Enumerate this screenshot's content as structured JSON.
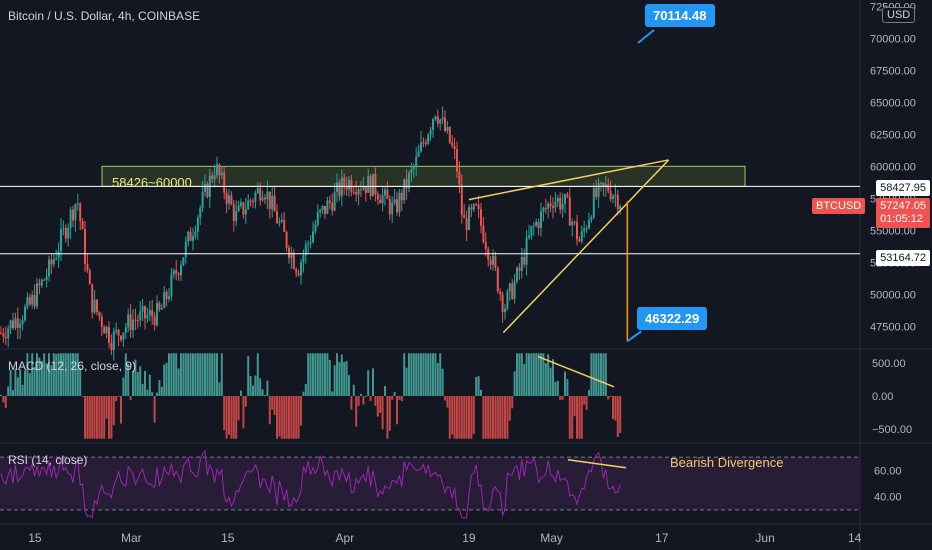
{
  "header": {
    "symbol_title": "Bitcoin / U.S. Dollar, 4h, COINBASE",
    "currency_button": "USD"
  },
  "colors": {
    "background": "#131722",
    "up": "#26a69a",
    "down": "#ef5350",
    "zone_fill": "#3a4a2a",
    "trendline": "#f0d060",
    "callout": "#2196f3",
    "rsi_line": "#9c27b0",
    "rsi_band": "#2a1e3a",
    "projection": "#ff9800"
  },
  "annotations": {
    "zone_label": "58426~60000",
    "target_high": "70114.48",
    "target_low": "46322.29",
    "bearish_label": "Bearish Divergence"
  },
  "price_tags": {
    "level_upper": "58427.95",
    "current_symbol": "BTCUSD",
    "current_price": "57247.05",
    "countdown": "01:05:12",
    "level_lower": "53164.72"
  },
  "macd": {
    "legend": "MACD (12, 26, close, 9)"
  },
  "rsi": {
    "legend": "RSI (14, close)"
  },
  "chart_data": {
    "type": "candlestick",
    "timeframe": "4h",
    "exchange": "COINBASE",
    "price_axis": {
      "ticks": [
        72500,
        70000,
        67500,
        65000,
        62500,
        60000,
        57500,
        55000,
        52500,
        50000,
        47500
      ],
      "tick_labels": [
        "72500.00",
        "70000.00",
        "67500.00",
        "65000.00",
        "62500.00",
        "60000.00",
        "57500.00",
        "55000.00",
        "52500.00",
        "50000.00",
        "47500.00"
      ],
      "range": [
        45800,
        73000
      ]
    },
    "x_axis": {
      "tick_labels": [
        "15",
        "Mar",
        "15",
        "Apr",
        "19",
        "May",
        "17",
        "Jun",
        "14"
      ],
      "tick_dates": [
        "2021-02-15",
        "2021-03-01",
        "2021-03-15",
        "2021-04-01",
        "2021-04-19",
        "2021-05-01",
        "2021-05-17",
        "2021-06-01",
        "2021-06-14"
      ]
    },
    "horizontal_levels": [
      58427.95,
      53164.72
    ],
    "zone": {
      "low": 58426,
      "high": 60000
    },
    "approx_path": [
      {
        "date": "2021-02-08",
        "close": 46500
      },
      {
        "date": "2021-02-10",
        "close": 47000
      },
      {
        "date": "2021-02-14",
        "close": 49000
      },
      {
        "date": "2021-02-17",
        "close": 52000
      },
      {
        "date": "2021-02-21",
        "close": 57500
      },
      {
        "date": "2021-02-23",
        "close": 49500
      },
      {
        "date": "2021-02-26",
        "close": 46500
      },
      {
        "date": "2021-03-01",
        "close": 48000
      },
      {
        "date": "2021-03-05",
        "close": 48500
      },
      {
        "date": "2021-03-09",
        "close": 54000
      },
      {
        "date": "2021-03-13",
        "close": 60000
      },
      {
        "date": "2021-03-16",
        "close": 56000
      },
      {
        "date": "2021-03-20",
        "close": 58500
      },
      {
        "date": "2021-03-25",
        "close": 52000
      },
      {
        "date": "2021-03-28",
        "close": 56000
      },
      {
        "date": "2021-04-01",
        "close": 58800
      },
      {
        "date": "2021-04-05",
        "close": 58500
      },
      {
        "date": "2021-04-08",
        "close": 56500
      },
      {
        "date": "2021-04-11",
        "close": 60000
      },
      {
        "date": "2021-04-14",
        "close": 64500
      },
      {
        "date": "2021-04-16",
        "close": 62000
      },
      {
        "date": "2021-04-17",
        "close": 60500
      },
      {
        "date": "2021-04-18",
        "close": 55500
      },
      {
        "date": "2021-04-20",
        "close": 56500
      },
      {
        "date": "2021-04-22",
        "close": 53000
      },
      {
        "date": "2021-04-24",
        "close": 49000
      },
      {
        "date": "2021-04-26",
        "close": 51500
      },
      {
        "date": "2021-04-28",
        "close": 55000
      },
      {
        "date": "2021-05-01",
        "close": 57500
      },
      {
        "date": "2021-05-03",
        "close": 57000
      },
      {
        "date": "2021-05-05",
        "close": 54000
      },
      {
        "date": "2021-05-07",
        "close": 57500
      },
      {
        "date": "2021-05-09",
        "close": 58400
      },
      {
        "date": "2021-05-11",
        "close": 57247
      }
    ],
    "trend_lines": [
      {
        "from": {
          "date": "2021-04-19",
          "price": 57400
        },
        "to": {
          "date": "2021-05-18",
          "price": 60500
        }
      },
      {
        "from": {
          "date": "2021-04-24",
          "price": 47000
        },
        "to": {
          "date": "2021-05-18",
          "price": 60500
        }
      }
    ],
    "projection": {
      "from_price": 57247.05,
      "to_price": 46322.29,
      "target_high": 70114.48
    },
    "macd": {
      "params": [
        12,
        26,
        9
      ],
      "ticks": [
        500,
        0,
        -500
      ],
      "tick_labels": [
        "500.00",
        "0.00",
        "−500.00"
      ],
      "range": [
        -700,
        700
      ]
    },
    "rsi": {
      "period": 14,
      "ticks": [
        60,
        40
      ],
      "tick_labels": [
        "60.00",
        "40.00"
      ],
      "band": [
        30,
        70
      ],
      "range": [
        20,
        80
      ]
    }
  }
}
